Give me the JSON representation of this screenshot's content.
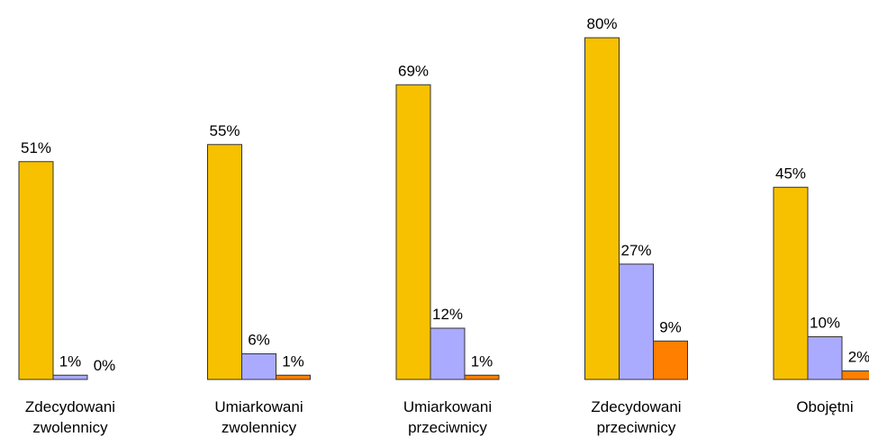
{
  "chart_data": {
    "type": "bar",
    "categories": [
      [
        "Zdecydowani",
        "zwolennicy"
      ],
      [
        "Umiarkowani",
        "zwolennicy"
      ],
      [
        "Umiarkowani",
        "przeciwnicy"
      ],
      [
        "Zdecydowani",
        "przeciwnicy"
      ],
      [
        "Obojętni"
      ]
    ],
    "series": [
      {
        "color": "#f7c100",
        "values": [
          51,
          55,
          69,
          80,
          45
        ],
        "value_labels": [
          "51%",
          "55%",
          "69%",
          "80%",
          "45%"
        ]
      },
      {
        "color": "#aaaaff",
        "values": [
          1,
          6,
          12,
          27,
          10
        ],
        "value_labels": [
          "1%",
          "6%",
          "12%",
          "27%",
          "10%"
        ]
      },
      {
        "color": "#ff7f00",
        "values": [
          0,
          1,
          1,
          9,
          2
        ],
        "value_labels": [
          "0%",
          "1%",
          "1%",
          "9%",
          "2%"
        ]
      }
    ]
  }
}
